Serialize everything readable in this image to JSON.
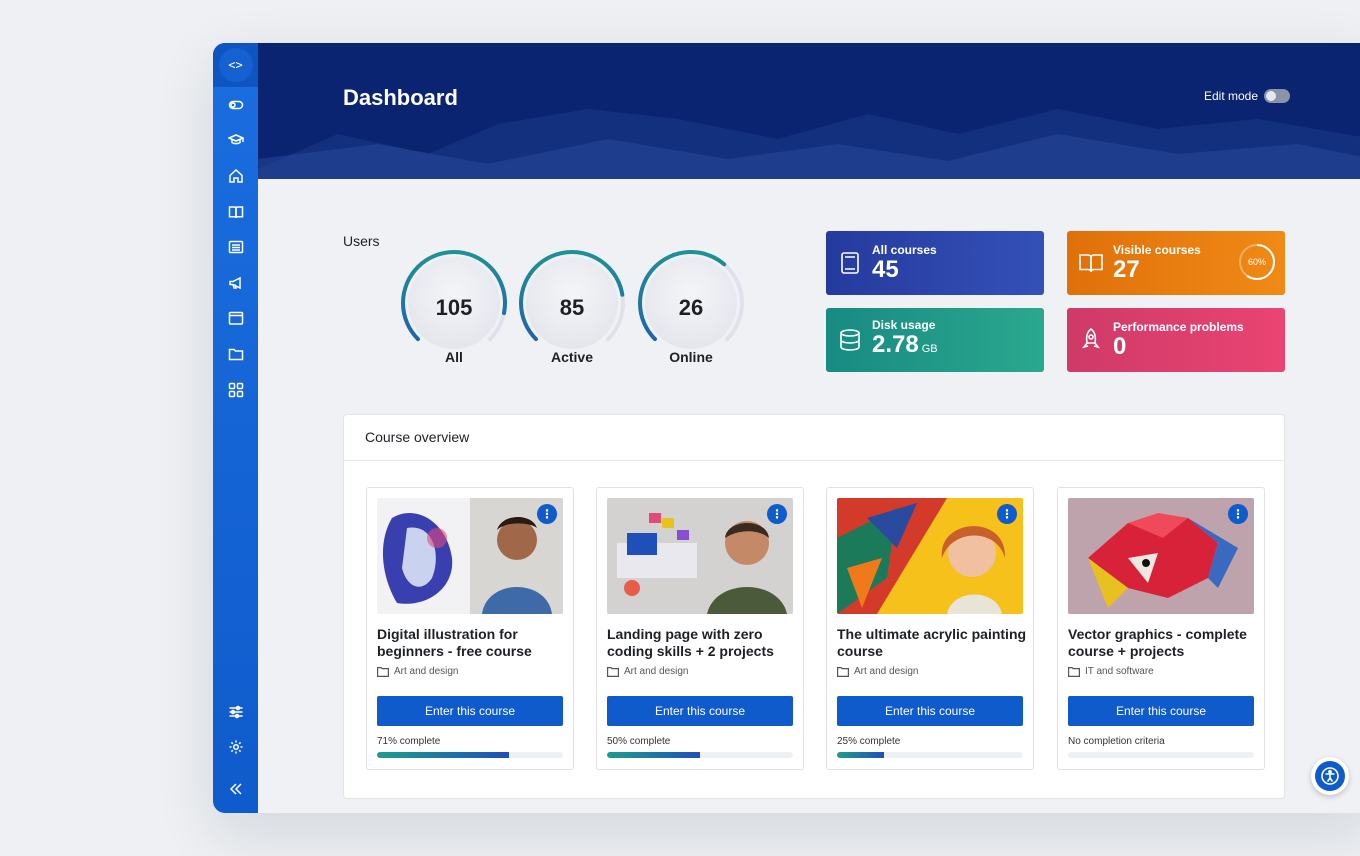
{
  "header": {
    "title": "Dashboard",
    "edit_mode_label": "Edit mode"
  },
  "sidebar": {
    "items": [
      {
        "icon": "toggle-icon"
      },
      {
        "icon": "graduation-cap-icon"
      },
      {
        "icon": "home-icon"
      },
      {
        "icon": "book-icon"
      },
      {
        "icon": "list-icon"
      },
      {
        "icon": "megaphone-icon"
      },
      {
        "icon": "calendar-icon"
      },
      {
        "icon": "folder-icon"
      },
      {
        "icon": "apps-icon"
      }
    ],
    "bottom": [
      {
        "icon": "sliders-icon"
      },
      {
        "icon": "gear-icon"
      }
    ],
    "collapse_icon": "chevrons-left-icon",
    "top_icon": "code-icon"
  },
  "users": {
    "title": "Users",
    "gauges": [
      {
        "value": "105",
        "label": "All",
        "fraction": 0.72
      },
      {
        "value": "85",
        "label": "Active",
        "fraction": 0.55
      },
      {
        "value": "26",
        "label": "Online",
        "fraction": 0.22
      }
    ]
  },
  "stats": {
    "all_courses": {
      "title": "All courses",
      "value": "45",
      "color": "#2a3fa8"
    },
    "visible_courses": {
      "title": "Visible courses",
      "value": "27",
      "percent": "60%",
      "color": "#ea7a0c"
    },
    "disk_usage": {
      "title": "Disk usage",
      "value": "2.78",
      "unit": "GB",
      "color": "#1e9b88"
    },
    "performance": {
      "title": "Performance problems",
      "value": "0",
      "color": "#e23e6c"
    }
  },
  "overview": {
    "title": "Course overview",
    "courses": [
      {
        "title": "Digital illustration for beginners - free course",
        "category": "Art and design",
        "button": "Enter this course",
        "progress_text": "71% complete",
        "progress": 0.71
      },
      {
        "title": "Landing page with zero coding skills + 2 projects",
        "category": "Art and design",
        "button": "Enter this course",
        "progress_text": "50% complete",
        "progress": 0.5
      },
      {
        "title": "The ultimate acrylic painting course",
        "category": "Art and design",
        "button": "Enter this course",
        "progress_text": "25% complete",
        "progress": 0.25
      },
      {
        "title": "Vector graphics - complete course + projects",
        "category": "IT and software",
        "button": "Enter this course",
        "progress_text": "No completion criteria",
        "progress": 0
      }
    ]
  },
  "kebab_glyph": "⋮"
}
